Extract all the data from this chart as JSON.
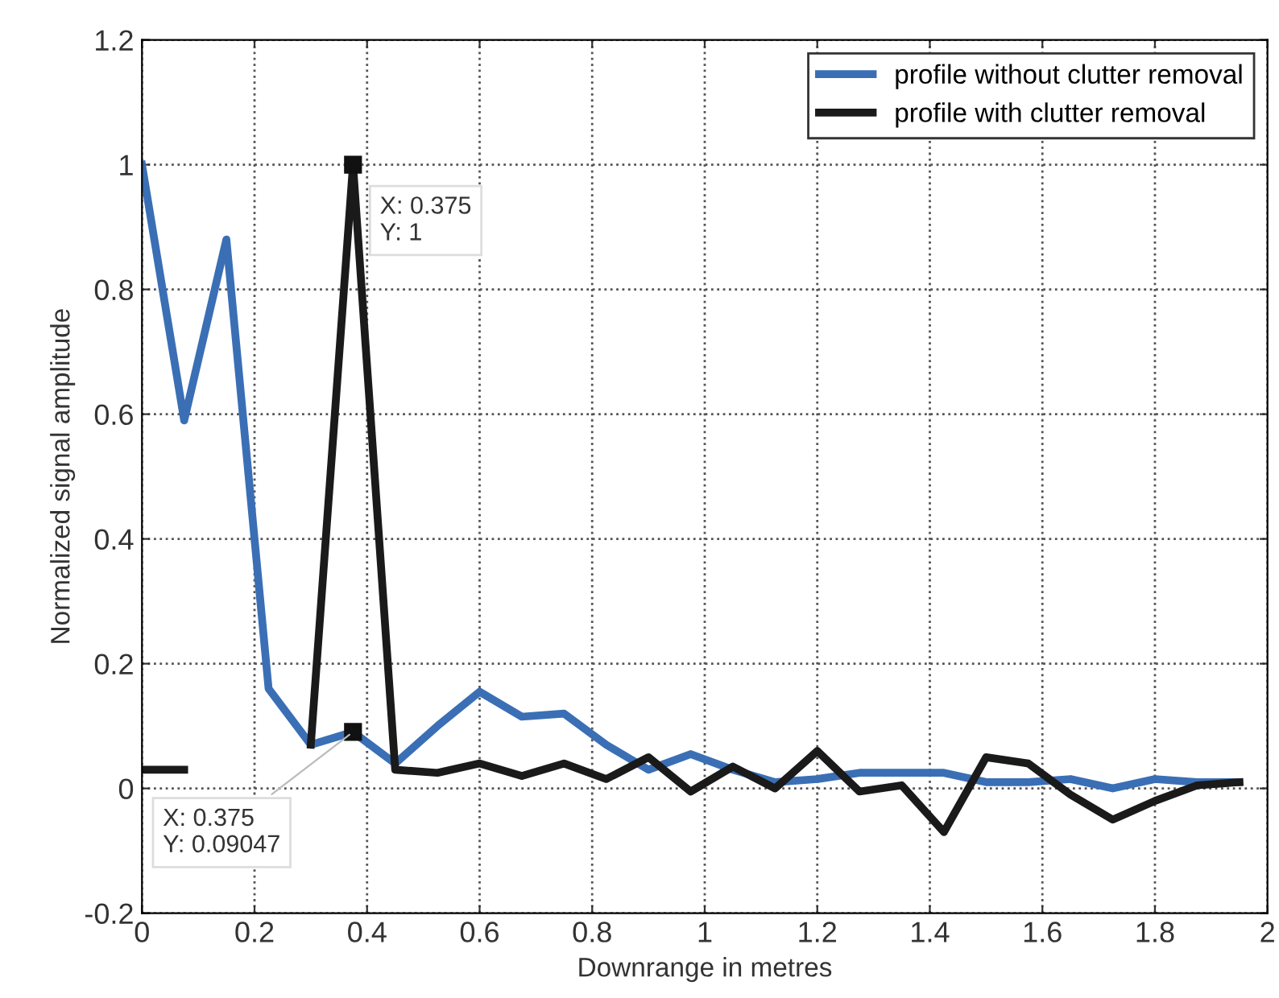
{
  "chart_data": {
    "type": "line",
    "xlabel": "Downrange in metres",
    "ylabel": "Normalized signal amplitude",
    "x": [
      0,
      0.075,
      0.15,
      0.225,
      0.3,
      0.375,
      0.45,
      0.525,
      0.6,
      0.675,
      0.75,
      0.825,
      0.9,
      0.975,
      1.05,
      1.125,
      1.2,
      1.275,
      1.35,
      1.425,
      1.5,
      1.575,
      1.65,
      1.725,
      1.8,
      1.875,
      1.95
    ],
    "series": [
      {
        "name": "profile without clutter removal",
        "color": "#3a6fb5",
        "values": [
          1,
          0.59,
          0.88,
          0.16,
          0.07,
          0.09047,
          0.04,
          0.1,
          0.155,
          0.115,
          0.12,
          0.07,
          0.03,
          0.055,
          0.03,
          0.01,
          0.015,
          0.025,
          0.025,
          0.025,
          0.01,
          0.01,
          0.015,
          0.0,
          0.015,
          0.01,
          0.01
        ]
      },
      {
        "name": "profile with clutter removal",
        "color": "#1a1a1a",
        "values": [
          0.03,
          0.03,
          null,
          null,
          0.07,
          1,
          0.03,
          0.025,
          0.04,
          0.02,
          0.04,
          0.015,
          0.05,
          -0.005,
          0.035,
          0.0,
          0.06,
          -0.005,
          0.005,
          -0.07,
          0.05,
          0.04,
          -0.01,
          -0.05,
          -0.02,
          0.005,
          0.01
        ]
      }
    ],
    "annotations": [
      {
        "text": "X: 0.375\nY: 1",
        "x": 0.375,
        "y": 1
      },
      {
        "text": "X: 0.375\nY: 0.09047",
        "x": 0.375,
        "y": 0.09047
      }
    ],
    "xlim": [
      0,
      2
    ],
    "ylim": [
      -0.2,
      1.2
    ],
    "xticks": [
      0,
      0.2,
      0.4,
      0.6,
      0.8,
      1,
      1.2,
      1.4,
      1.6,
      1.8,
      2
    ],
    "yticks": [
      -0.2,
      0,
      0.2,
      0.4,
      0.6,
      0.8,
      1,
      1.2
    ],
    "grid": true,
    "legend": "top right",
    "line_style": "solid",
    "marker": "none"
  }
}
